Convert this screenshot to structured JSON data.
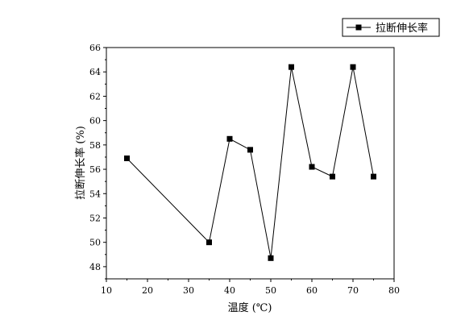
{
  "chart_data": {
    "type": "line",
    "title": "",
    "xlabel": "温度 (℃)",
    "ylabel": "拉断伸长率 (%)",
    "xlim": [
      10,
      80
    ],
    "ylim": [
      47,
      66
    ],
    "x_ticks": [
      10,
      20,
      30,
      40,
      50,
      60,
      70,
      80
    ],
    "y_ticks": [
      48,
      50,
      52,
      54,
      56,
      58,
      60,
      62,
      64,
      66
    ],
    "grid": false,
    "legend_position": "top-right",
    "series": [
      {
        "name": "拉断伸长率",
        "marker": "square",
        "color": "#000000",
        "x": [
          15,
          35,
          40,
          45,
          50,
          55,
          60,
          65,
          70,
          75
        ],
        "y": [
          56.9,
          50.0,
          58.5,
          57.6,
          48.7,
          64.4,
          56.2,
          55.4,
          64.4,
          55.4
        ]
      }
    ]
  }
}
